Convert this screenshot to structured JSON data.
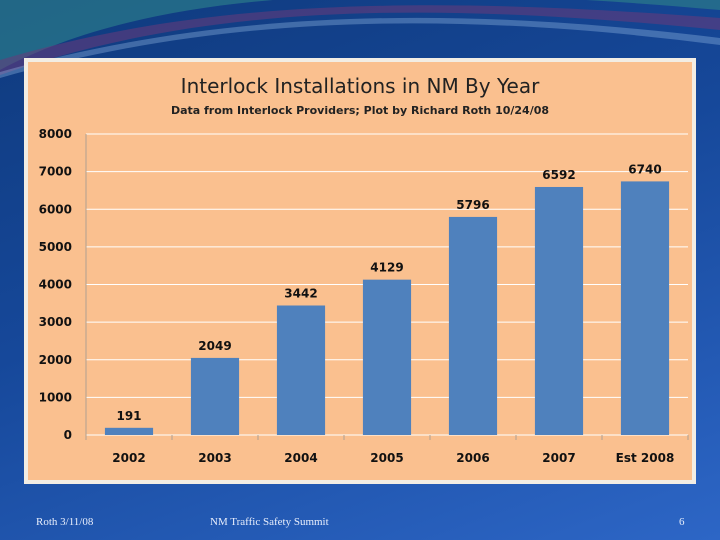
{
  "colors": {
    "bar": "#4f81bd",
    "plot_bg": "#fac08f",
    "frame": "#f2ede4",
    "grid": "#ffffff"
  },
  "chart_data": {
    "type": "bar",
    "title": "Interlock Installations in NM By Year",
    "subtitle": "Data from Interlock Providers; Plot by Richard Roth 10/24/08",
    "categories": [
      "2002",
      "2003",
      "2004",
      "2005",
      "2006",
      "2007",
      "Est 2008"
    ],
    "values": [
      191,
      2049,
      3442,
      4129,
      5796,
      6592,
      6740
    ],
    "data_labels": [
      "191",
      "2049",
      "3442",
      "4129",
      "5796",
      "6592",
      "6740"
    ],
    "ylim": [
      0,
      8000
    ],
    "yticks": [
      0,
      1000,
      2000,
      3000,
      4000,
      5000,
      6000,
      7000,
      8000
    ],
    "grid": true,
    "xlabel": "",
    "ylabel": ""
  },
  "footer": {
    "author_date": "Roth 3/11/08",
    "event": "NM Traffic Safety Summit",
    "slide_number": "6"
  }
}
